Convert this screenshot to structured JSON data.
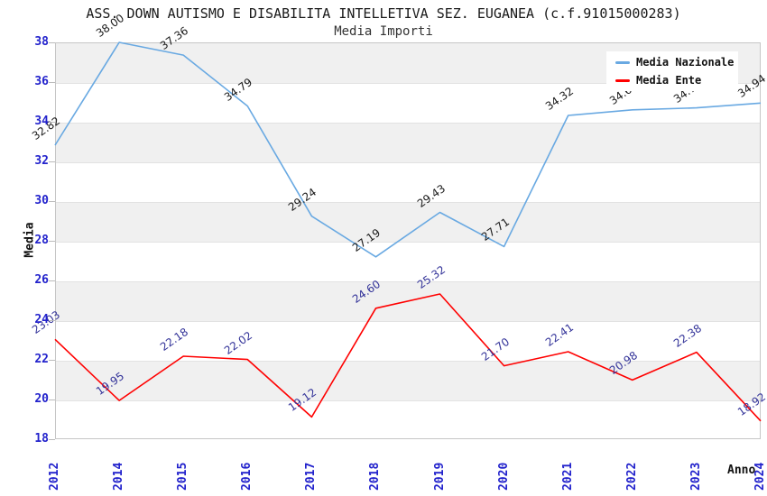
{
  "header": {
    "title": "ASS. DOWN AUTISMO E DISABILITA INTELLETIVA SEZ. EUGANEA (c.f.91015000283)",
    "subtitle": "Media Importi"
  },
  "colors": {
    "axis_tick_label": "#2222cc",
    "band_fill": "#f0f0f0",
    "gridline": "#e2e2e2",
    "plot_border": "#c6c6c6",
    "national_series": "#69a9e2",
    "entity_series": "#ff0000",
    "national_data_label": "#1a1a1a",
    "entity_data_label": "#333399"
  },
  "chart_data": {
    "type": "line",
    "title": "ASS. DOWN AUTISMO E DISABILITA INTELLETIVA SEZ. EUGANEA (c.f.91015000283)",
    "subtitle": "Media Importi",
    "xlabel": "Anno",
    "ylabel": "Media",
    "categories": [
      "2012",
      "2014",
      "2015",
      "2016",
      "2017",
      "2018",
      "2019",
      "2020",
      "2021",
      "2022",
      "2023",
      "2024"
    ],
    "series": [
      {
        "name": "Media Nazionale",
        "color": "#69a9e2",
        "label_color": "#1a1a1a",
        "values": [
          32.82,
          38.0,
          37.36,
          34.79,
          29.24,
          27.19,
          29.43,
          27.71,
          34.32,
          34.6,
          34.7,
          34.94
        ]
      },
      {
        "name": "Media Ente",
        "color": "#ff0000",
        "label_color": "#333399",
        "values": [
          23.03,
          19.95,
          22.18,
          22.02,
          19.12,
          24.6,
          25.32,
          21.7,
          22.41,
          20.98,
          22.38,
          18.92
        ]
      }
    ],
    "ylim": [
      18,
      38
    ],
    "ytick_step": 2,
    "yticks": [
      18,
      20,
      22,
      24,
      26,
      28,
      30,
      32,
      34,
      36,
      38
    ],
    "grid": "horizontal alternating bands of 2 units, gray on 20-22, 24-26, 28-30, 32-34, 36-38",
    "legend_position": "top-right",
    "data_label_format": "two decimals, rotated -35deg"
  }
}
